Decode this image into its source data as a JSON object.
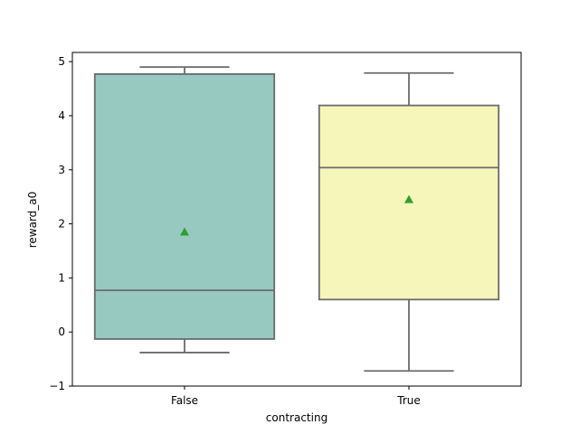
{
  "chart_data": {
    "type": "box",
    "xlabel": "contracting",
    "ylabel": "reward_a0",
    "ylim": [
      -1,
      5.17
    ],
    "yticks": [
      "−1",
      "0",
      "1",
      "2",
      "3",
      "4",
      "5"
    ],
    "ytick_values": [
      -1,
      0,
      1,
      2,
      3,
      4,
      5
    ],
    "categories": [
      "False",
      "True"
    ],
    "boxes": [
      {
        "category": "False",
        "whisker_low": -0.38,
        "q1": -0.13,
        "median": 0.77,
        "q3": 4.77,
        "whisker_high": 4.9,
        "mean": 1.85,
        "color": "#98c9c1"
      },
      {
        "category": "True",
        "whisker_low": -0.72,
        "q1": 0.6,
        "median": 3.04,
        "q3": 4.19,
        "whisker_high": 4.79,
        "mean": 2.45,
        "color": "#f6f6bb"
      }
    ],
    "mean_marker_color": "#2ca02c",
    "line_color": "#6b6b6b",
    "grid": false,
    "legend": "none"
  }
}
